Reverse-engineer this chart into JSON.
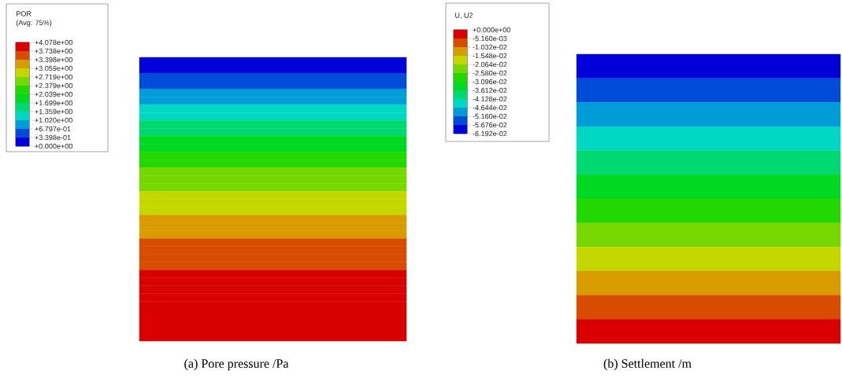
{
  "chart_data": [
    {
      "type": "heatmap",
      "clabel": "POR",
      "annotations": [
        "(Avg: 75%)"
      ],
      "xlabel": "(a) Pore pressure /Pa",
      "categories": [
        null
      ],
      "y_categories": [
        null,
        null,
        null,
        null,
        null,
        null,
        null,
        null,
        null,
        null,
        null,
        null,
        null,
        null,
        null,
        null,
        null,
        null,
        null,
        null,
        null,
        null,
        null,
        null,
        null,
        null,
        null,
        null,
        null,
        null,
        null,
        null,
        null,
        null,
        null,
        null
      ],
      "cells": [
        [
          0.17
        ],
        [
          0.17
        ],
        [
          0.51
        ],
        [
          0.51
        ],
        [
          0.85
        ],
        [
          0.85
        ],
        [
          1.19
        ],
        [
          1.19
        ],
        [
          1.53
        ],
        [
          1.53
        ],
        [
          1.87
        ],
        [
          1.87
        ],
        [
          2.21
        ],
        [
          2.21
        ],
        [
          2.55
        ],
        [
          2.55
        ],
        [
          2.55
        ],
        [
          2.89
        ],
        [
          2.89
        ],
        [
          2.89
        ],
        [
          3.23
        ],
        [
          3.23
        ],
        [
          3.23
        ],
        [
          3.57
        ],
        [
          3.57
        ],
        [
          3.57
        ],
        [
          3.57
        ],
        [
          3.91
        ],
        [
          3.91
        ],
        [
          3.91
        ],
        [
          3.91
        ],
        [
          3.91
        ],
        [
          3.91
        ],
        [
          3.91
        ],
        [
          3.91
        ],
        [
          3.91
        ]
      ],
      "clim": [
        0,
        4.078
      ],
      "cticks": [
        {
          "value": 0,
          "label": "+0.000e+00"
        },
        {
          "value": 0.3398,
          "label": "+3.398e-01"
        },
        {
          "value": 0.6797,
          "label": "+6.797e-01"
        },
        {
          "value": 1.02,
          "label": "+1.020e+00"
        },
        {
          "value": 1.359,
          "label": "+1.359e+00"
        },
        {
          "value": 1.699,
          "label": "+1.699e+00"
        },
        {
          "value": 2.039,
          "label": "+2.039e+00"
        },
        {
          "value": 2.379,
          "label": "+2.379e+00"
        },
        {
          "value": 2.719,
          "label": "+2.719e+00"
        },
        {
          "value": 3.059,
          "label": "+3.059e+00"
        },
        {
          "value": 3.398,
          "label": "+3.398e+00"
        },
        {
          "value": 3.738,
          "label": "+3.738e+00"
        },
        {
          "value": 4.078,
          "label": "+4.078e+00"
        }
      ]
    },
    {
      "type": "heatmap",
      "clabel": "U, U2",
      "xlabel": "(b) Settlement /m",
      "categories": [
        null
      ],
      "y_categories": [
        null,
        null,
        null,
        null,
        null,
        null,
        null,
        null,
        null,
        null,
        null,
        null
      ],
      "cells": [
        [
          -0.05934
        ],
        [
          -0.05418
        ],
        [
          -0.04902
        ],
        [
          -0.04386
        ],
        [
          -0.0387
        ],
        [
          -0.03354
        ],
        [
          -0.02838
        ],
        [
          -0.02322
        ],
        [
          -0.01806
        ],
        [
          -0.0129
        ],
        [
          -0.00774
        ],
        [
          -0.00258
        ]
      ],
      "clim": [
        -0.06192,
        0
      ],
      "cticks": [
        {
          "value": -0.06192,
          "label": "-6.192e-02"
        },
        {
          "value": -0.05676,
          "label": "-5.676e-02"
        },
        {
          "value": -0.0516,
          "label": "-5.160e-02"
        },
        {
          "value": -0.04644,
          "label": "-4.644e-02"
        },
        {
          "value": -0.04128,
          "label": "-4.128e-02"
        },
        {
          "value": -0.03612,
          "label": "-3.612e-02"
        },
        {
          "value": -0.03096,
          "label": "-3.096e-02"
        },
        {
          "value": -0.0258,
          "label": "-2.580e-02"
        },
        {
          "value": -0.02064,
          "label": "-2.064e-02"
        },
        {
          "value": -0.01548,
          "label": "-1.548e-02"
        },
        {
          "value": -0.01032,
          "label": "-1.032e-02"
        },
        {
          "value": -0.00516,
          "label": "-5.160e-03"
        },
        {
          "value": 0,
          "label": "+0.000e+00"
        }
      ]
    }
  ]
}
